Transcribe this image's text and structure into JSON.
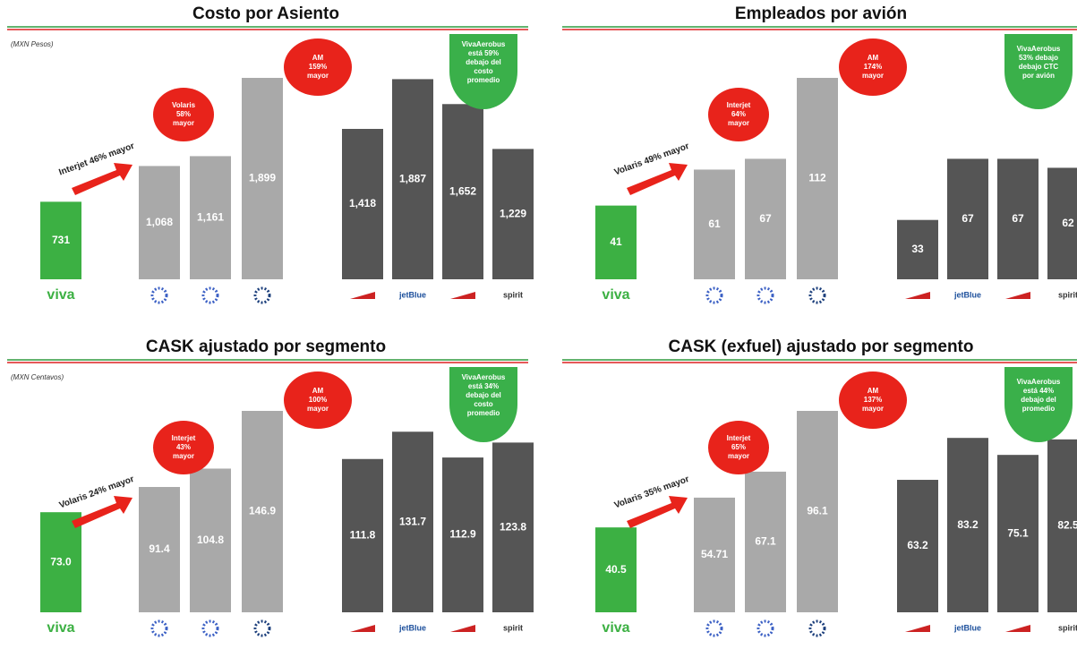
{
  "chart_data": [
    {
      "type": "bar",
      "title": "Costo por Asiento",
      "subtitle": "(MXN Pesos)",
      "categories": [
        "viva",
        null,
        null,
        null,
        null,
        "jetBlue",
        null,
        "spirit"
      ],
      "values": [
        731,
        1068,
        1161,
        1899,
        1418,
        1887,
        1652,
        1229
      ],
      "value_labels": [
        "731",
        "1,068",
        "1,161",
        "1,899",
        "1,418",
        "1,887",
        "1,652",
        "1,229"
      ],
      "colors": [
        "#3cb043",
        "#a9a9a9",
        "#a9a9a9",
        "#a9a9a9",
        "#555555",
        "#555555",
        "#555555",
        "#555555"
      ],
      "arrow_label": "Interjet 46% mayor",
      "bubbles": [
        [
          "Volaris",
          "58%",
          "mayor"
        ],
        [
          "AM",
          "159%",
          "mayor"
        ],
        [
          "VivaAerobus",
          "está 59%",
          "debajo del",
          "costo",
          "promedio"
        ]
      ]
    },
    {
      "type": "bar",
      "title": "Empleados por avión",
      "categories": [
        "viva",
        null,
        null,
        null,
        null,
        "jetBlue",
        null,
        "spirit"
      ],
      "values": [
        41,
        61,
        67,
        112,
        33,
        67,
        67,
        62
      ],
      "value_labels": [
        "41",
        "61",
        "67",
        "112",
        "33",
        "67",
        "67",
        "62"
      ],
      "colors": [
        "#3cb043",
        "#a9a9a9",
        "#a9a9a9",
        "#a9a9a9",
        "#555555",
        "#555555",
        "#555555",
        "#555555"
      ],
      "arrow_label": "Volaris 49% mayor",
      "bubbles": [
        [
          "Interjet",
          "64%",
          "mayor"
        ],
        [
          "AM",
          "174%",
          "mayor"
        ],
        [
          "VivaAerobus",
          "53% debajo",
          "debajo CTC",
          "por avión"
        ]
      ]
    },
    {
      "type": "bar",
      "title": "CASK ajustado por segmento",
      "subtitle": "(MXN Centavos)",
      "categories": [
        "viva",
        null,
        null,
        null,
        null,
        "jetBlue",
        null,
        "spirit"
      ],
      "values": [
        73.0,
        91.4,
        104.8,
        146.9,
        111.8,
        131.7,
        112.9,
        123.8
      ],
      "value_labels": [
        "73.0",
        "91.4",
        "104.8",
        "146.9",
        "111.8",
        "131.7",
        "112.9",
        "123.8"
      ],
      "colors": [
        "#3cb043",
        "#a9a9a9",
        "#a9a9a9",
        "#a9a9a9",
        "#555555",
        "#555555",
        "#555555",
        "#555555"
      ],
      "arrow_label": "Volaris 24% mayor",
      "bubbles": [
        [
          "Interjet",
          "43%",
          "mayor"
        ],
        [
          "AM",
          "100%",
          "mayor"
        ],
        [
          "VivaAerobus",
          "está 34%",
          "debajo del",
          "costo",
          "promedio"
        ]
      ]
    },
    {
      "type": "bar",
      "title": "CASK (exfuel) ajustado por segmento",
      "categories": [
        "viva",
        null,
        null,
        null,
        null,
        "jetBlue",
        null,
        "spirit"
      ],
      "values": [
        40.5,
        54.71,
        67.1,
        96.1,
        63.2,
        83.2,
        75.1,
        82.5
      ],
      "value_labels": [
        "40.5",
        "54.71",
        "67.1",
        "96.1",
        "63.2",
        "83.2",
        "75.1",
        "82.5"
      ],
      "colors": [
        "#3cb043",
        "#a9a9a9",
        "#a9a9a9",
        "#a9a9a9",
        "#555555",
        "#555555",
        "#555555",
        "#555555"
      ],
      "arrow_label": "Volaris 35% mayor",
      "bubbles": [
        [
          "Interjet",
          "65%",
          "mayor"
        ],
        [
          "AM",
          "137%",
          "mayor"
        ],
        [
          "VivaAerobus",
          "está 44%",
          "debajo del",
          "promedio"
        ]
      ]
    }
  ]
}
